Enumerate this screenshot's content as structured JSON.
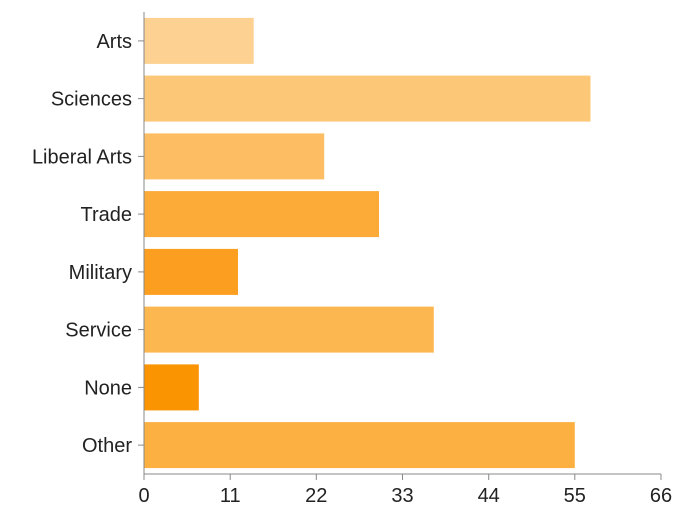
{
  "chart_data": {
    "type": "bar",
    "orientation": "horizontal",
    "title": "",
    "xlabel": "",
    "ylabel": "",
    "categories": [
      "Arts",
      "Sciences",
      "Liberal Arts",
      "Trade",
      "Military",
      "Service",
      "None",
      "Other"
    ],
    "values": [
      14,
      57,
      23,
      30,
      12,
      37,
      7,
      55
    ],
    "xlim": [
      0,
      66
    ],
    "xticks": [
      0,
      11,
      22,
      33,
      44,
      55,
      66
    ],
    "xtick_labels": [
      "0",
      "11",
      "22",
      "33",
      "44",
      "55",
      "66"
    ],
    "grid": false,
    "legend": "none",
    "colors": [
      "#fdd192",
      "#fcc878",
      "#fdbd63",
      "#fcaa38",
      "#fc9e1f",
      "#fdb750",
      "#fa9400",
      "#fcb042"
    ]
  }
}
